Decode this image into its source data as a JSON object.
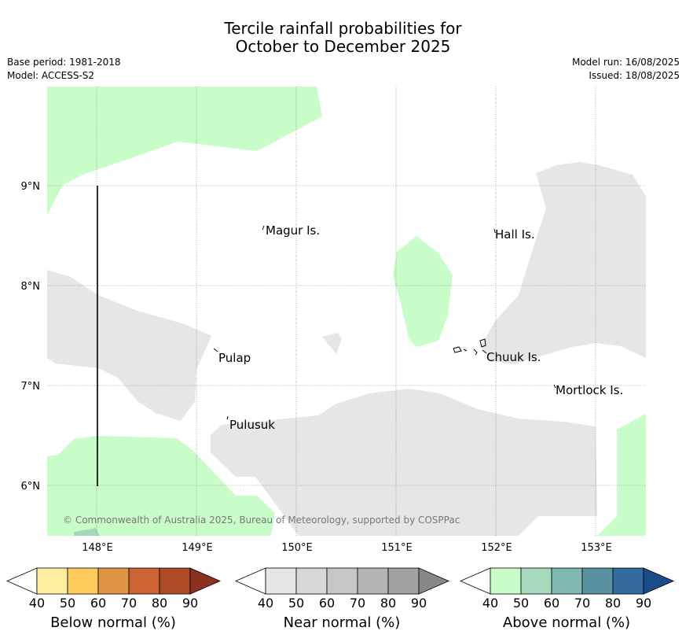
{
  "title_line1": "Tercile rainfall probabilities for",
  "title_line2": "October to December 2025",
  "meta": {
    "base_period": "Base period: 1981-2018",
    "model": "Model: ACCESS-S2",
    "model_run": "Model run: 16/08/2025",
    "issued": "Issued: 18/08/2025"
  },
  "map": {
    "lat_labels": [
      "9°N",
      "8°N",
      "7°N",
      "6°N"
    ],
    "lon_labels": [
      "148°E",
      "149°E",
      "150°E",
      "151°E",
      "152°E",
      "153°E"
    ],
    "places": [
      {
        "name": "Magur Is."
      },
      {
        "name": "Hall Is."
      },
      {
        "name": "Pulap"
      },
      {
        "name": "Chuuk Is."
      },
      {
        "name": "Mortlock Is."
      },
      {
        "name": "Pulusuk"
      }
    ],
    "copyright": "© Commonwealth of Australia 2025, Bureau of Meteorology, supported by COSPPac"
  },
  "colorbars": [
    {
      "label": "Below normal (%)",
      "ticks": [
        "40",
        "50",
        "60",
        "70",
        "80",
        "90"
      ],
      "colors": [
        "#ffffff",
        "#ffeda0",
        "#fecc5c",
        "#e09545",
        "#cd6233",
        "#ad4a27",
        "#8c3120"
      ]
    },
    {
      "label": "Near normal (%)",
      "ticks": [
        "40",
        "50",
        "60",
        "70",
        "80",
        "90"
      ],
      "colors": [
        "#ffffff",
        "#e6e6e6",
        "#d8d8d8",
        "#c6c6c6",
        "#b4b4b4",
        "#a2a2a2",
        "#888888"
      ]
    },
    {
      "label": "Above normal (%)",
      "ticks": [
        "40",
        "50",
        "60",
        "70",
        "80",
        "90"
      ],
      "colors": [
        "#ffffff",
        "#c8fcc8",
        "#a6d9bc",
        "#7fb7b1",
        "#5a92a1",
        "#356a9e",
        "#184d88"
      ]
    }
  ]
}
